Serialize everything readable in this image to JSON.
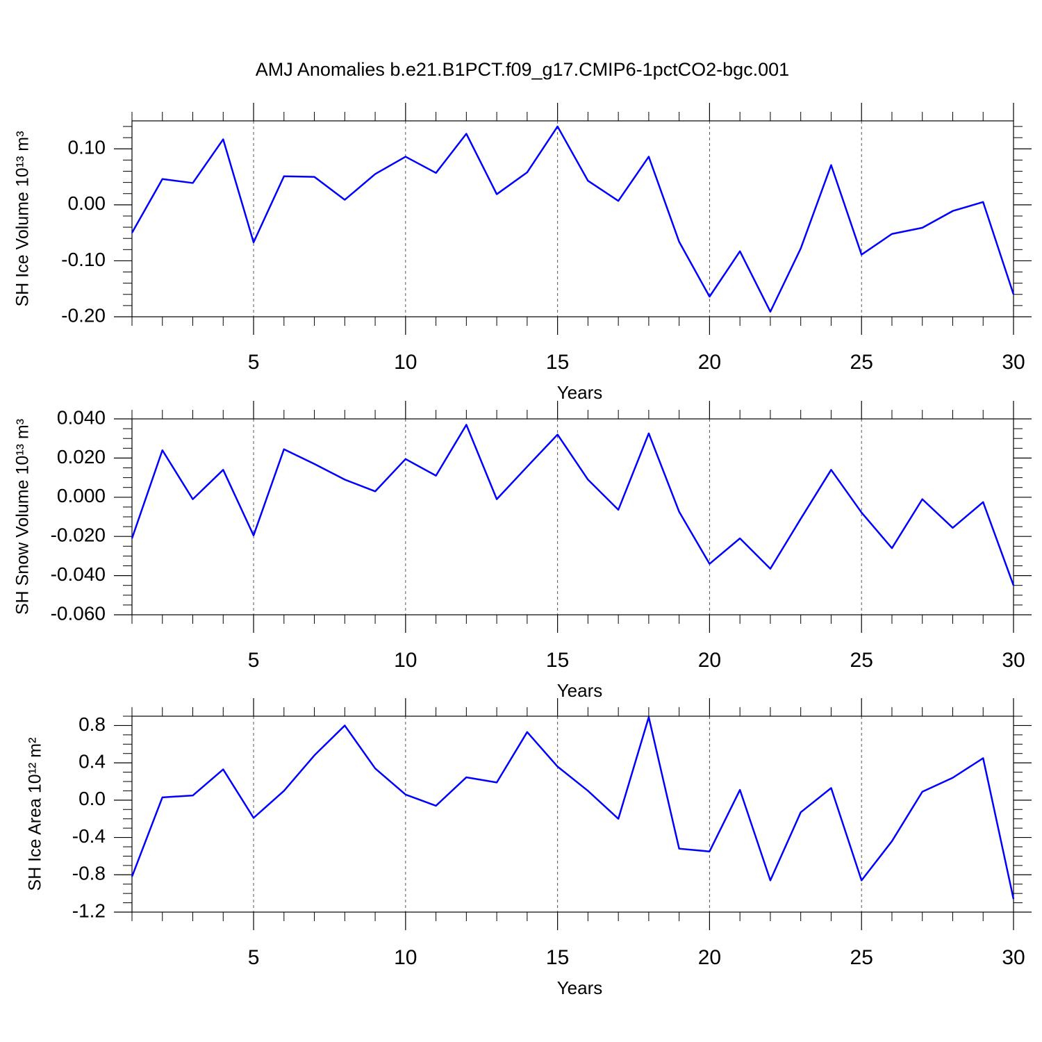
{
  "chart_data": [
    {
      "type": "line",
      "title": "AMJ Anomalies b.e21.B1PCT.f09_g17.CMIP6-1pctCO2-bgc.001",
      "xlabel": "Years",
      "ylabel": "SH Ice Volume 10¹³ m³",
      "color": "#0000ff",
      "grid": true,
      "x": [
        1,
        2,
        3,
        4,
        5,
        6,
        7,
        8,
        9,
        10,
        11,
        12,
        13,
        14,
        15,
        16,
        17,
        18,
        19,
        20,
        21,
        22,
        23,
        24,
        25,
        26,
        27,
        28,
        29,
        30
      ],
      "values": [
        -0.05,
        0.046,
        0.039,
        0.117,
        -0.067,
        0.051,
        0.05,
        0.009,
        0.055,
        0.086,
        0.057,
        0.127,
        0.019,
        0.058,
        0.14,
        0.043,
        0.007,
        0.086,
        -0.066,
        -0.164,
        -0.083,
        -0.191,
        -0.078,
        0.071,
        -0.089,
        -0.052,
        -0.041,
        -0.011,
        0.005,
        -0.16
      ],
      "xlim": [
        1,
        30
      ],
      "xticks": [
        5,
        10,
        15,
        20,
        25,
        30
      ],
      "xminor": 5,
      "ylim": [
        -0.2,
        0.15
      ],
      "yminor": 5,
      "yticks": [
        {
          "value": 0.1,
          "label": "0.10"
        },
        {
          "value": 0,
          "label": "0.00"
        },
        {
          "value": -0.1,
          "label": "-0.10"
        },
        {
          "value": -0.2,
          "label": "-0.20"
        }
      ]
    },
    {
      "type": "line",
      "xlabel": "Years",
      "ylabel": "SH Snow Volume 10¹³ m³",
      "color": "#0000ff",
      "grid": true,
      "x": [
        1,
        2,
        3,
        4,
        5,
        6,
        7,
        8,
        9,
        10,
        11,
        12,
        13,
        14,
        15,
        16,
        17,
        18,
        19,
        20,
        21,
        22,
        23,
        24,
        25,
        26,
        27,
        28,
        29,
        30
      ],
      "values": [
        -0.021,
        0.024,
        -0.001,
        0.014,
        -0.0195,
        0.0245,
        0.017,
        0.009,
        0.003,
        0.0195,
        0.011,
        0.037,
        -0.001,
        0.0156,
        0.032,
        0.009,
        -0.0064,
        0.0326,
        -0.0074,
        -0.034,
        -0.021,
        -0.0365,
        -0.011,
        0.014,
        -0.0078,
        -0.026,
        -0.001,
        -0.0156,
        -0.0025,
        -0.045
      ],
      "xlim": [
        1,
        30
      ],
      "xticks": [
        5,
        10,
        15,
        20,
        25,
        30
      ],
      "xminor": 5,
      "ylim": [
        -0.06,
        0.04
      ],
      "yminor": 4,
      "yticks": [
        {
          "value": 0.04,
          "label": "0.040"
        },
        {
          "value": 0.02,
          "label": "0.020"
        },
        {
          "value": 0,
          "label": "0.000"
        },
        {
          "value": -0.02,
          "label": "-0.020"
        },
        {
          "value": -0.04,
          "label": "-0.040"
        },
        {
          "value": -0.06,
          "label": "-0.060"
        }
      ]
    },
    {
      "type": "line",
      "xlabel": "Years",
      "ylabel": "SH Ice Area 10¹² m²",
      "color": "#0000ff",
      "grid": true,
      "x": [
        1,
        2,
        3,
        4,
        5,
        6,
        7,
        8,
        9,
        10,
        11,
        12,
        13,
        14,
        15,
        16,
        17,
        18,
        19,
        20,
        21,
        22,
        23,
        24,
        25,
        26,
        27,
        28,
        29,
        30
      ],
      "values": [
        -0.82,
        0.03,
        0.05,
        0.33,
        -0.19,
        0.1,
        0.48,
        0.8,
        0.34,
        0.06,
        -0.06,
        0.245,
        0.19,
        0.73,
        0.36,
        0.1,
        -0.2,
        0.89,
        -0.52,
        -0.55,
        0.11,
        -0.86,
        -0.13,
        0.13,
        -0.86,
        -0.44,
        0.09,
        0.24,
        0.45,
        -1.06
      ],
      "xlim": [
        1,
        30
      ],
      "xticks": [
        5,
        10,
        15,
        20,
        25,
        30
      ],
      "xminor": 5,
      "ylim": [
        -1.2,
        0.9
      ],
      "yminor": 4,
      "yticks": [
        0.8,
        0.4,
        {
          "value": 0,
          "label": "0.0"
        },
        -0.4,
        -0.8,
        -1.2
      ]
    }
  ]
}
